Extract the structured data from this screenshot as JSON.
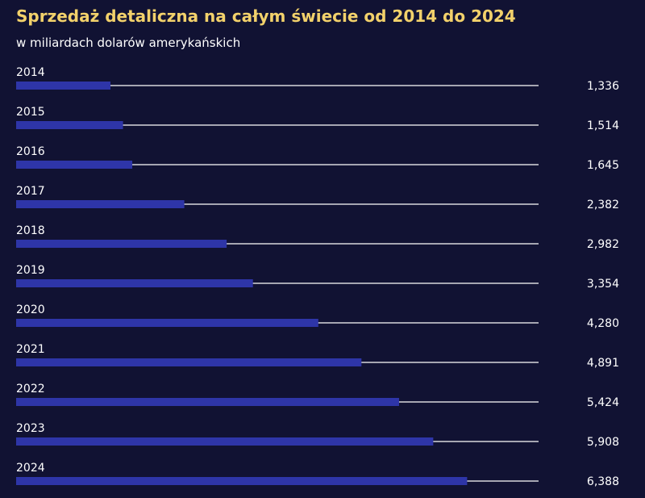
{
  "title": "Sprzedaż detaliczna na całym świecie od 2014 do 2024",
  "subtitle": "w miliardach dolarów amerykańskich",
  "colors": {
    "background": "#111233",
    "title": "#f2d16b",
    "bar": "#2e35a8",
    "track": "#ffffff",
    "text": "#ffffff"
  },
  "chart_data": {
    "type": "bar",
    "orientation": "horizontal",
    "title": "Sprzedaż detaliczna na całym świecie od 2014 do 2024",
    "subtitle": "w miliardach dolarów amerykańskich",
    "categories": [
      "2014",
      "2015",
      "2016",
      "2017",
      "2018",
      "2019",
      "2020",
      "2021",
      "2022",
      "2023",
      "2024"
    ],
    "values": [
      1336,
      1514,
      1645,
      2382,
      2982,
      3354,
      4280,
      4891,
      5424,
      5908,
      6388
    ],
    "value_labels": [
      "1,336",
      "1,514",
      "1,645",
      "2,382",
      "2,982",
      "3,354",
      "4,280",
      "4,891",
      "5,424",
      "5,908",
      "6,388"
    ],
    "xlim": [
      0,
      7400
    ],
    "grid": false,
    "legend": "none"
  }
}
